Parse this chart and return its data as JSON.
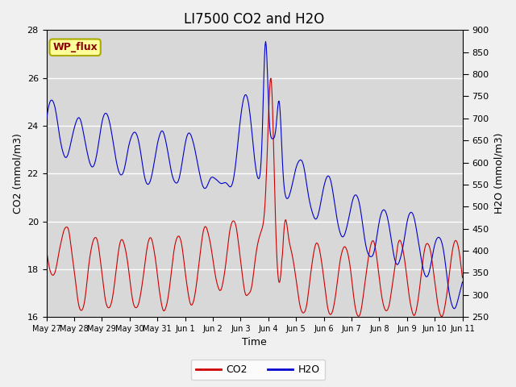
{
  "title": "LI7500 CO2 and H2O",
  "xlabel": "Time",
  "ylabel_left": "CO2 (mmol/m3)",
  "ylabel_right": "H2O (mmol/m3)",
  "ylim_left": [
    16,
    28
  ],
  "ylim_right": [
    250,
    900
  ],
  "yticks_left": [
    16,
    18,
    20,
    22,
    24,
    26,
    28
  ],
  "yticks_right": [
    250,
    300,
    350,
    400,
    450,
    500,
    550,
    600,
    650,
    700,
    750,
    800,
    850,
    900
  ],
  "xtick_labels": [
    "May 27",
    "May 28",
    "May 29",
    "May 30",
    "May 31",
    "Jun 1",
    "Jun 2",
    "Jun 3",
    "Jun 4",
    "Jun 5",
    "Jun 6",
    "Jun 7",
    "Jun 8",
    "Jun 9",
    "Jun 10",
    "Jun 11"
  ],
  "co2_color": "#cc0000",
  "h2o_color": "#0000cc",
  "plot_bg_color": "#d8d8d8",
  "fig_bg_color": "#f0f0f0",
  "annotation_text": "WP_flux",
  "annotation_color": "#8b0000",
  "annotation_bg": "#ffff99",
  "annotation_edge": "#aaaa00",
  "legend_co2": "CO2",
  "legend_h2o": "H2O",
  "title_fontsize": 12,
  "axis_fontsize": 9,
  "tick_fontsize": 8
}
